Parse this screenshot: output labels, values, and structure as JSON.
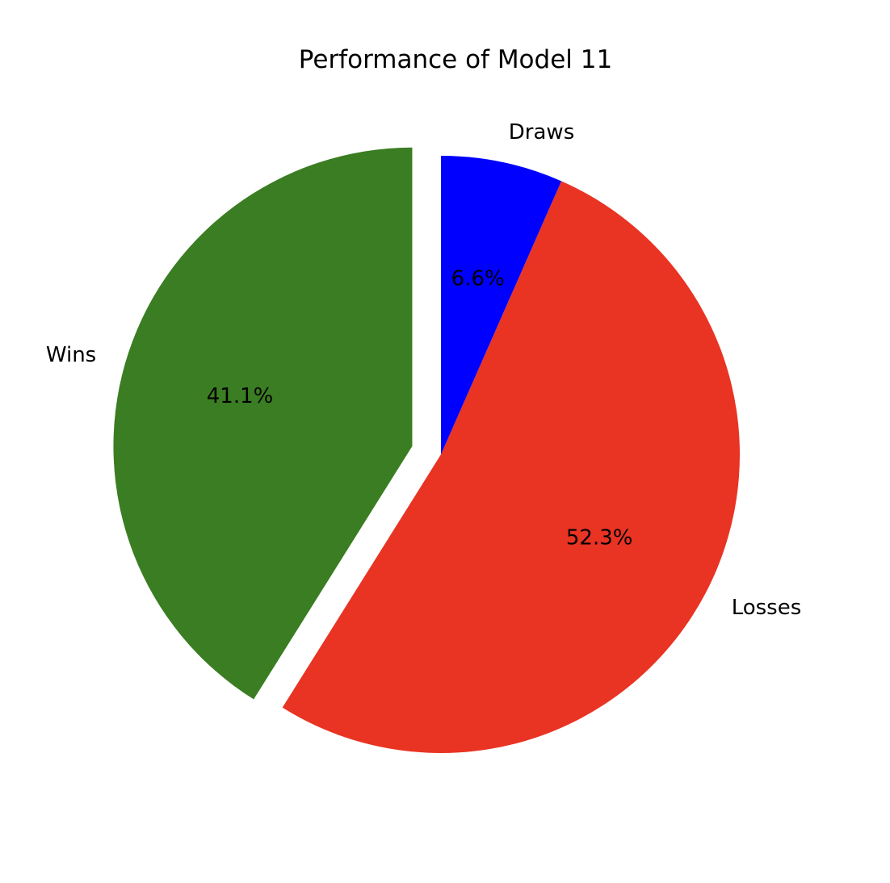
{
  "chart_data": {
    "type": "pie",
    "title": "Performance of Model 11",
    "categories": [
      "Wins",
      "Losses",
      "Draws"
    ],
    "values": [
      41.1,
      52.3,
      6.6
    ],
    "percent_labels": [
      "41.1%",
      "52.3%",
      "6.6%"
    ],
    "colors": [
      "#3a7d22",
      "#e93323",
      "#0000ff"
    ],
    "exploded": [
      "Wins"
    ],
    "start_angle_deg": 90,
    "direction": "counterclockwise",
    "legend": "none"
  }
}
